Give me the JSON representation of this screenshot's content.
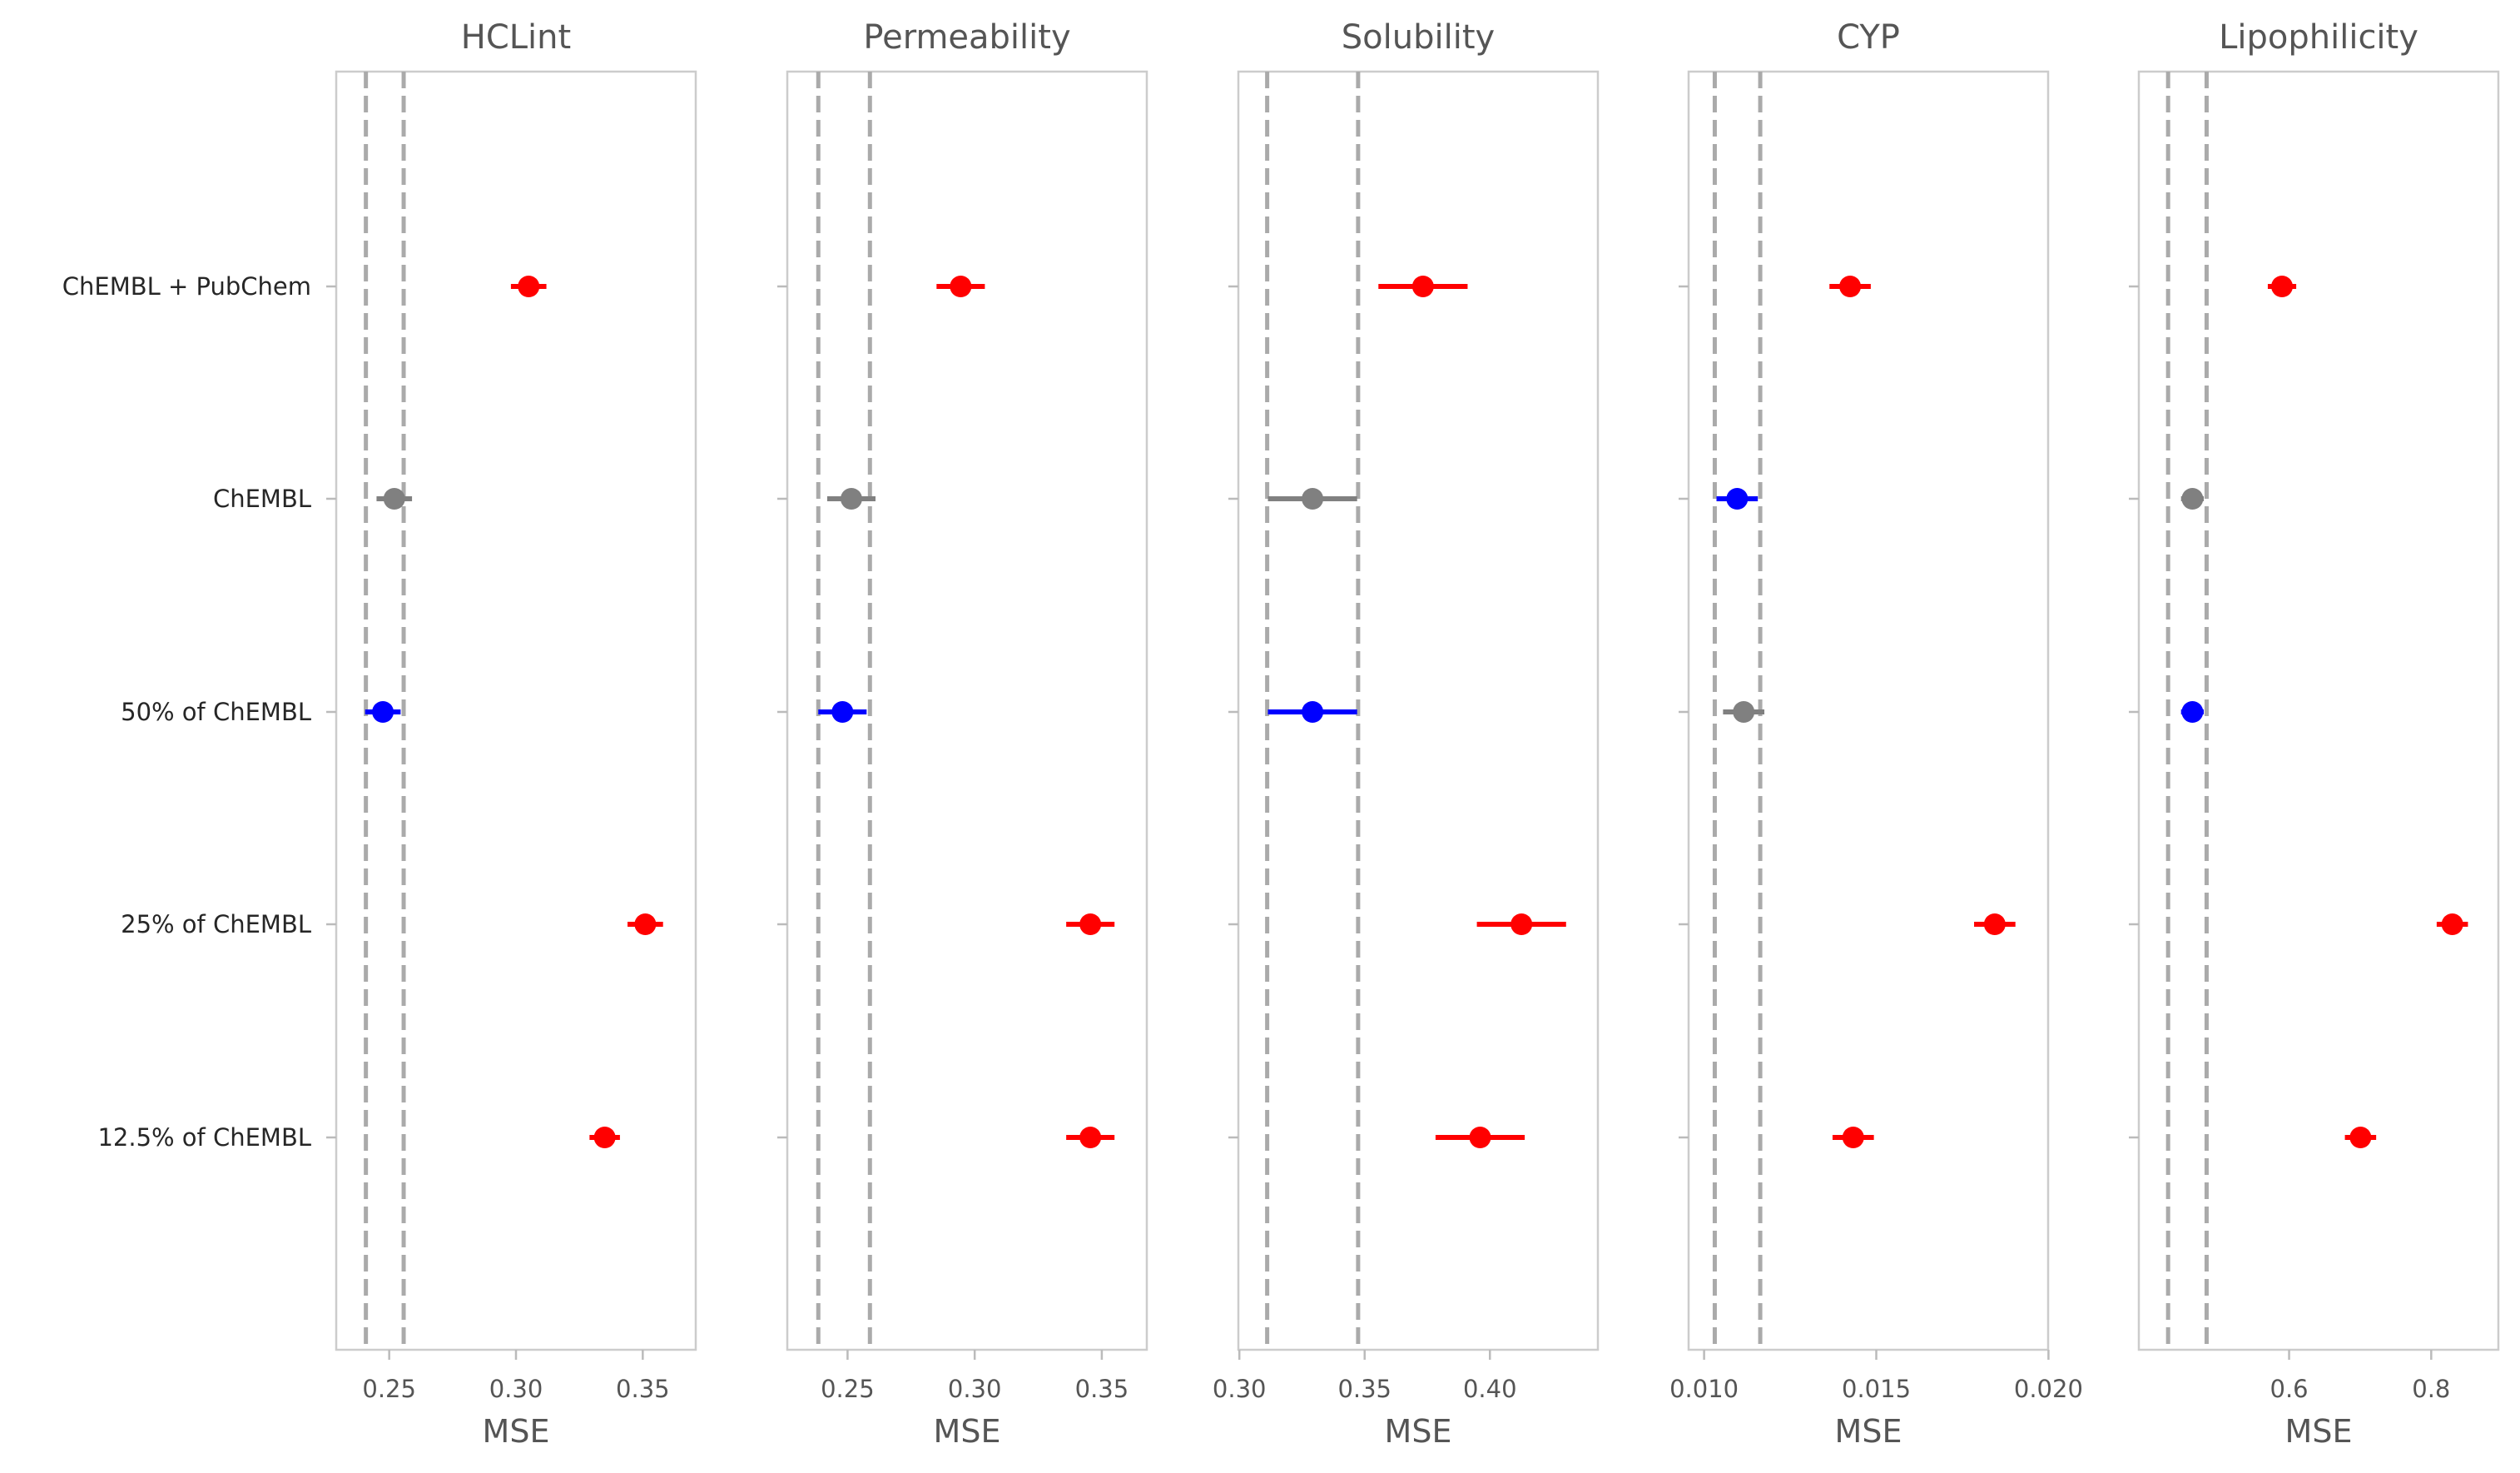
{
  "chart_data": {
    "type": "scatter",
    "variant": "dot-plot with horizontal error bars",
    "categories": [
      "ChEMBL + PubChem",
      "ChEMBL",
      "50% of ChEMBL",
      "25% of ChEMBL",
      "12.5% of ChEMBL"
    ],
    "xlabel": "MSE",
    "grid": false,
    "legend": "none",
    "colors": {
      "worse": "#ff0000",
      "better": "#0000ff",
      "neutral": "#808080",
      "reference_line": "#aaaaaa"
    },
    "panels": [
      {
        "title": "HCLint",
        "xlim": [
          0.2291,
          0.3709
        ],
        "xticks": [
          0.25,
          0.3,
          0.35
        ],
        "xtick_labels": [
          "0.25",
          "0.30",
          "0.35"
        ],
        "ref_lines": [
          0.2408,
          0.2557
        ],
        "points": [
          {
            "value": 0.305,
            "err": 0.007,
            "color": "red"
          },
          {
            "value": 0.252,
            "err": 0.007,
            "color": "gray"
          },
          {
            "value": 0.2475,
            "err": 0.007,
            "color": "blue"
          },
          {
            "value": 0.351,
            "err": 0.007,
            "color": "red"
          },
          {
            "value": 0.335,
            "err": 0.006,
            "color": "red"
          }
        ]
      },
      {
        "title": "Permeability",
        "xlim": [
          0.2263,
          0.3677
        ],
        "xticks": [
          0.25,
          0.3,
          0.35
        ],
        "xtick_labels": [
          "0.25",
          "0.30",
          "0.35"
        ],
        "ref_lines": [
          0.2385,
          0.2588
        ],
        "points": [
          {
            "value": 0.2945,
            "err": 0.0095,
            "color": "red"
          },
          {
            "value": 0.2515,
            "err": 0.0095,
            "color": "gray"
          },
          {
            "value": 0.248,
            "err": 0.0095,
            "color": "blue"
          },
          {
            "value": 0.3455,
            "err": 0.0095,
            "color": "red"
          },
          {
            "value": 0.3455,
            "err": 0.0095,
            "color": "red"
          }
        ]
      },
      {
        "title": "Solubility",
        "xlim": [
          0.2996,
          0.4431
        ],
        "xticks": [
          0.3,
          0.35,
          0.4
        ],
        "xtick_labels": [
          "0.30",
          "0.35",
          "0.40"
        ],
        "ref_lines": [
          0.3111,
          0.3474
        ],
        "points": [
          {
            "value": 0.3733,
            "err": 0.0178,
            "color": "red"
          },
          {
            "value": 0.3292,
            "err": 0.0178,
            "color": "gray"
          },
          {
            "value": 0.3292,
            "err": 0.0178,
            "color": "blue"
          },
          {
            "value": 0.4126,
            "err": 0.0178,
            "color": "red"
          },
          {
            "value": 0.3961,
            "err": 0.0178,
            "color": "red"
          }
        ]
      },
      {
        "title": "CYP",
        "xlim": [
          0.00955,
          0.01999
        ],
        "xticks": [
          0.01,
          0.015,
          0.02
        ],
        "xtick_labels": [
          "0.010",
          "0.015",
          "0.020"
        ],
        "ref_lines": [
          0.01031,
          0.01163
        ],
        "points": [
          {
            "value": 0.01424,
            "err": 0.0006,
            "color": "red"
          },
          {
            "value": 0.01096,
            "err": 0.0006,
            "color": "blue"
          },
          {
            "value": 0.01115,
            "err": 0.0006,
            "color": "gray"
          },
          {
            "value": 0.01844,
            "err": 0.0006,
            "color": "red"
          },
          {
            "value": 0.01433,
            "err": 0.0006,
            "color": "red"
          }
        ]
      },
      {
        "title": "Lipophilicity",
        "xlim": [
          0.3885,
          0.8945
        ],
        "xticks": [
          0.6,
          0.8
        ],
        "xtick_labels": [
          "0.6",
          "0.8"
        ],
        "ref_lines": [
          0.4297,
          0.4839
        ],
        "points": [
          {
            "value": 0.59,
            "err": 0.02,
            "color": "red"
          },
          {
            "value": 0.4639,
            "err": 0.016,
            "color": "gray"
          },
          {
            "value": 0.4639,
            "err": 0.016,
            "color": "blue"
          },
          {
            "value": 0.8297,
            "err": 0.022,
            "color": "red"
          },
          {
            "value": 0.7005,
            "err": 0.022,
            "color": "red"
          }
        ]
      }
    ]
  }
}
